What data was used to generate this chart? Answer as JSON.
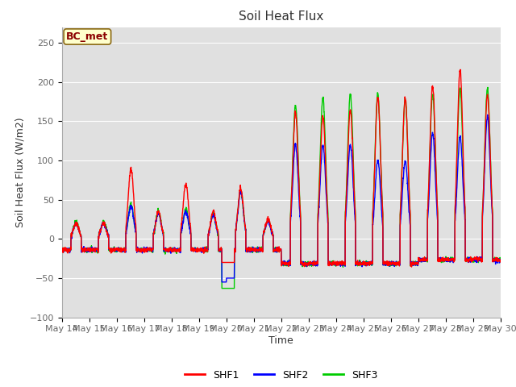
{
  "title": "Soil Heat Flux",
  "ylabel": "Soil Heat Flux (W/m2)",
  "xlabel": "Time",
  "ylim": [
    -100,
    270
  ],
  "yticks": [
    -100,
    -50,
    0,
    50,
    100,
    150,
    200,
    250
  ],
  "annotation_text": "BC_met",
  "annotation_bg": "#FFFFCC",
  "annotation_border": "#8B6914",
  "colors": {
    "SHF1": "#FF0000",
    "SHF2": "#0000FF",
    "SHF3": "#00CC00"
  },
  "bg_color": "#E0E0E0",
  "grid_color": "#FFFFFF",
  "line_width": 1.0,
  "n_days": 16,
  "start_day": 14,
  "title_fontsize": 11,
  "label_fontsize": 9,
  "tick_fontsize": 8
}
